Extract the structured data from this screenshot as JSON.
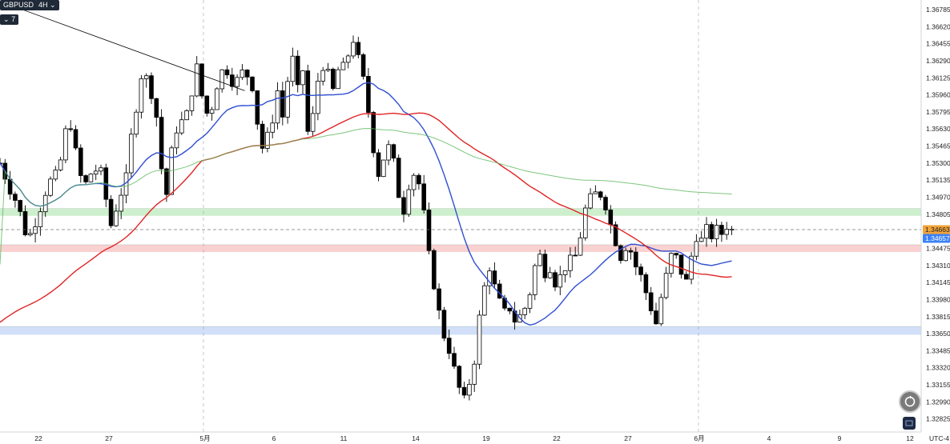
{
  "toolbar": {
    "symbol": "GBPUSD",
    "interval": "4H",
    "interval_caret": "⌄",
    "indicators_count": "7",
    "indicators_caret": "⌄"
  },
  "timezone": "UTC-4",
  "colors": {
    "bull_body": "#ffffff",
    "bear_body": "#000000",
    "wick": "#000000",
    "ma_blue": "#2f4fd1",
    "ma_red": "#e02424",
    "ma_green": "#5cb85c",
    "zone_green": "#c6ecc6",
    "zone_red": "#f8c9c9",
    "zone_blue": "#c9d9f7",
    "price_tag_orange": "#f2a33a",
    "price_tag_blue": "#3b82f6"
  },
  "chart_data": {
    "type": "candlestick",
    "symbol": "GBPUSD",
    "timeframe": "4H",
    "y_ticks": [
      "1.36785",
      "1.36620",
      "1.36455",
      "1.36290",
      "1.36125",
      "1.35960",
      "1.35795",
      "1.35630",
      "1.35465",
      "1.35300",
      "1.35135",
      "1.34970",
      "1.34805",
      "1.34640",
      "1.34475",
      "1.34310",
      "1.34145",
      "1.33980",
      "1.33815",
      "1.33650",
      "1.33485",
      "1.33320",
      "1.33155",
      "1.32990",
      "1.32825"
    ],
    "ylim": [
      1.3276,
      1.3685
    ],
    "x_ticks": [
      "22",
      "27",
      "5月",
      "6",
      "11",
      "14",
      "19",
      "22",
      "27",
      "6月",
      "4",
      "9",
      "12"
    ],
    "price_labels": [
      {
        "value": "1.34663",
        "color": "orange"
      },
      {
        "value": "1.34657",
        "color": "blue"
      }
    ],
    "zones": [
      {
        "name": "green-zone",
        "from": 1.3479,
        "to": 1.3486
      },
      {
        "name": "red-zone",
        "from": 1.3444,
        "to": 1.3451
      },
      {
        "name": "blue-zone",
        "from": 1.3364,
        "to": 1.3372
      }
    ],
    "trendline": {
      "from": {
        "slot": -8,
        "price": 1.369
      },
      "to": {
        "slot": 194,
        "price": 1.36
      }
    },
    "waypoints": [
      [
        0,
        1.353
      ],
      [
        8,
        1.3505
      ],
      [
        14,
        1.349
      ],
      [
        22,
        1.3455
      ],
      [
        30,
        1.348
      ],
      [
        38,
        1.351
      ],
      [
        46,
        1.352
      ],
      [
        50,
        1.3545
      ],
      [
        54,
        1.3575
      ],
      [
        58,
        1.356
      ],
      [
        62,
        1.352
      ],
      [
        68,
        1.351
      ],
      [
        74,
        1.3525
      ],
      [
        80,
        1.352
      ],
      [
        88,
        1.347
      ],
      [
        94,
        1.3495
      ],
      [
        100,
        1.3515
      ],
      [
        104,
        1.3555
      ],
      [
        108,
        1.3585
      ],
      [
        112,
        1.3615
      ],
      [
        118,
        1.361
      ],
      [
        124,
        1.3575
      ],
      [
        128,
        1.3525
      ],
      [
        132,
        1.35
      ],
      [
        136,
        1.354
      ],
      [
        142,
        1.3575
      ],
      [
        146,
        1.3565
      ],
      [
        152,
        1.36
      ],
      [
        156,
        1.3622
      ],
      [
        160,
        1.3595
      ],
      [
        166,
        1.357
      ],
      [
        170,
        1.36
      ],
      [
        178,
        1.3625
      ],
      [
        186,
        1.3605
      ],
      [
        190,
        1.3615
      ],
      [
        194,
        1.362
      ],
      [
        200,
        1.3605
      ],
      [
        204,
        1.357
      ],
      [
        208,
        1.3545
      ],
      [
        214,
        1.356
      ],
      [
        220,
        1.36
      ],
      [
        224,
        1.3575
      ],
      [
        228,
        1.361
      ],
      [
        232,
        1.363
      ],
      [
        236,
        1.36
      ],
      [
        240,
        1.362
      ],
      [
        244,
        1.356
      ],
      [
        248,
        1.3575
      ],
      [
        252,
        1.361
      ],
      [
        256,
        1.3625
      ],
      [
        260,
        1.3615
      ],
      [
        264,
        1.36
      ],
      [
        268,
        1.362
      ],
      [
        272,
        1.3622
      ],
      [
        276,
        1.3635
      ],
      [
        280,
        1.365
      ],
      [
        284,
        1.363
      ],
      [
        288,
        1.361
      ],
      [
        292,
        1.358
      ],
      [
        296,
        1.3545
      ],
      [
        300,
        1.352
      ],
      [
        304,
        1.3535
      ],
      [
        308,
        1.3545
      ],
      [
        312,
        1.353
      ],
      [
        316,
        1.35
      ],
      [
        320,
        1.3485
      ],
      [
        324,
        1.351
      ],
      [
        328,
        1.352
      ],
      [
        332,
        1.351
      ],
      [
        336,
        1.348
      ],
      [
        340,
        1.344
      ],
      [
        346,
        1.34
      ],
      [
        350,
        1.337
      ],
      [
        356,
        1.335
      ],
      [
        360,
        1.333
      ],
      [
        364,
        1.3312
      ],
      [
        368,
        1.33
      ],
      [
        372,
        1.3318
      ],
      [
        376,
        1.334
      ],
      [
        380,
        1.338
      ],
      [
        384,
        1.341
      ],
      [
        388,
        1.343
      ],
      [
        392,
        1.341
      ],
      [
        396,
        1.3395
      ],
      [
        400,
        1.3385
      ],
      [
        404,
        1.339
      ],
      [
        408,
        1.3378
      ],
      [
        412,
        1.3382
      ],
      [
        416,
        1.339
      ],
      [
        420,
        1.3405
      ],
      [
        424,
        1.343
      ],
      [
        428,
        1.344
      ],
      [
        432,
        1.3425
      ],
      [
        436,
        1.343
      ],
      [
        440,
        1.3415
      ],
      [
        444,
        1.342
      ],
      [
        448,
        1.343
      ],
      [
        452,
        1.3435
      ],
      [
        456,
        1.344
      ],
      [
        460,
        1.346
      ],
      [
        464,
        1.3485
      ],
      [
        468,
        1.3495
      ],
      [
        472,
        1.35
      ],
      [
        476,
        1.35
      ],
      [
        480,
        1.349
      ],
      [
        484,
        1.347
      ],
      [
        488,
        1.3455
      ],
      [
        492,
        1.344
      ],
      [
        496,
        1.345
      ],
      [
        500,
        1.3445
      ],
      [
        504,
        1.343
      ],
      [
        508,
        1.342
      ],
      [
        512,
        1.3405
      ],
      [
        516,
        1.339
      ],
      [
        520,
        1.3375
      ],
      [
        524,
        1.34
      ],
      [
        528,
        1.342
      ],
      [
        532,
        1.344
      ],
      [
        536,
        1.3438
      ],
      [
        540,
        1.3425
      ],
      [
        544,
        1.3415
      ],
      [
        548,
        1.344
      ],
      [
        552,
        1.346
      ],
      [
        556,
        1.3455
      ],
      [
        560,
        1.3465
      ],
      [
        564,
        1.346
      ],
      [
        568,
        1.3465
      ],
      [
        572,
        1.3462
      ],
      [
        576,
        1.347
      ],
      [
        580,
        1.3465
      ],
      [
        582,
        1.3466
      ]
    ]
  }
}
